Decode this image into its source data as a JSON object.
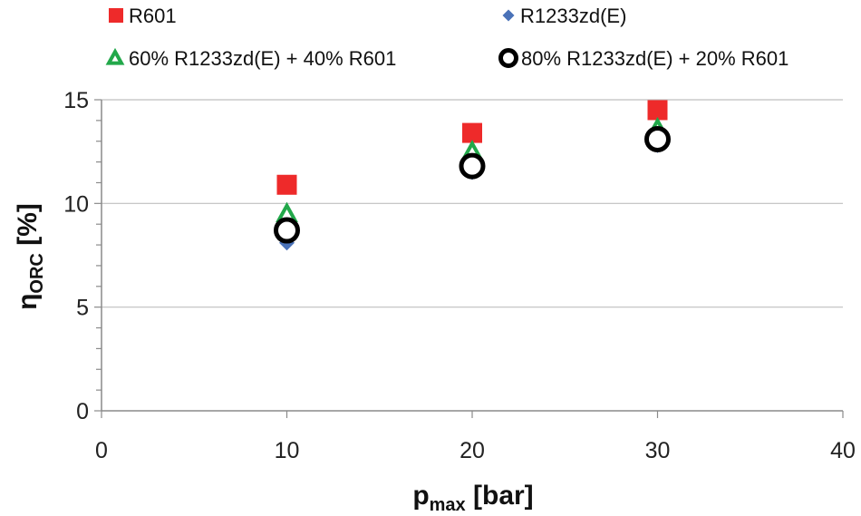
{
  "chart_data": {
    "type": "scatter",
    "title": "",
    "xlabel": "p",
    "xlabel_sub": "max",
    "xlabel_unit": " [bar]",
    "ylabel": "η",
    "ylabel_sub": "ORC",
    "ylabel_unit": " [%]",
    "xlim": [
      0,
      40
    ],
    "ylim": [
      0,
      15
    ],
    "xticks": [
      0,
      10,
      20,
      30,
      40
    ],
    "yticks": [
      0,
      5,
      10,
      15
    ],
    "xtick_labels": [
      "0",
      "10",
      "20",
      "30",
      "40"
    ],
    "ytick_labels": [
      "0",
      "5",
      "10",
      "15"
    ],
    "grid": "horizontal",
    "legend_position": "top",
    "x": [
      10,
      20,
      30
    ],
    "series": [
      {
        "name": "R601",
        "marker": "square",
        "color": "#ee2a2a",
        "values": [
          10.9,
          13.4,
          14.5
        ]
      },
      {
        "name": "R1233zd(E)",
        "marker": "diamond",
        "color": "#4a72b8",
        "values": [
          8.1,
          11.5,
          12.8
        ]
      },
      {
        "name": "60% R1233zd(E) + 40% R601",
        "marker": "triangle",
        "color": "#22a84a",
        "values": [
          9.5,
          12.5,
          13.6
        ]
      },
      {
        "name": "80% R1233zd(E) + 20% R601",
        "marker": "circle",
        "color": "#000000",
        "values": [
          8.7,
          11.8,
          13.1
        ]
      }
    ]
  }
}
